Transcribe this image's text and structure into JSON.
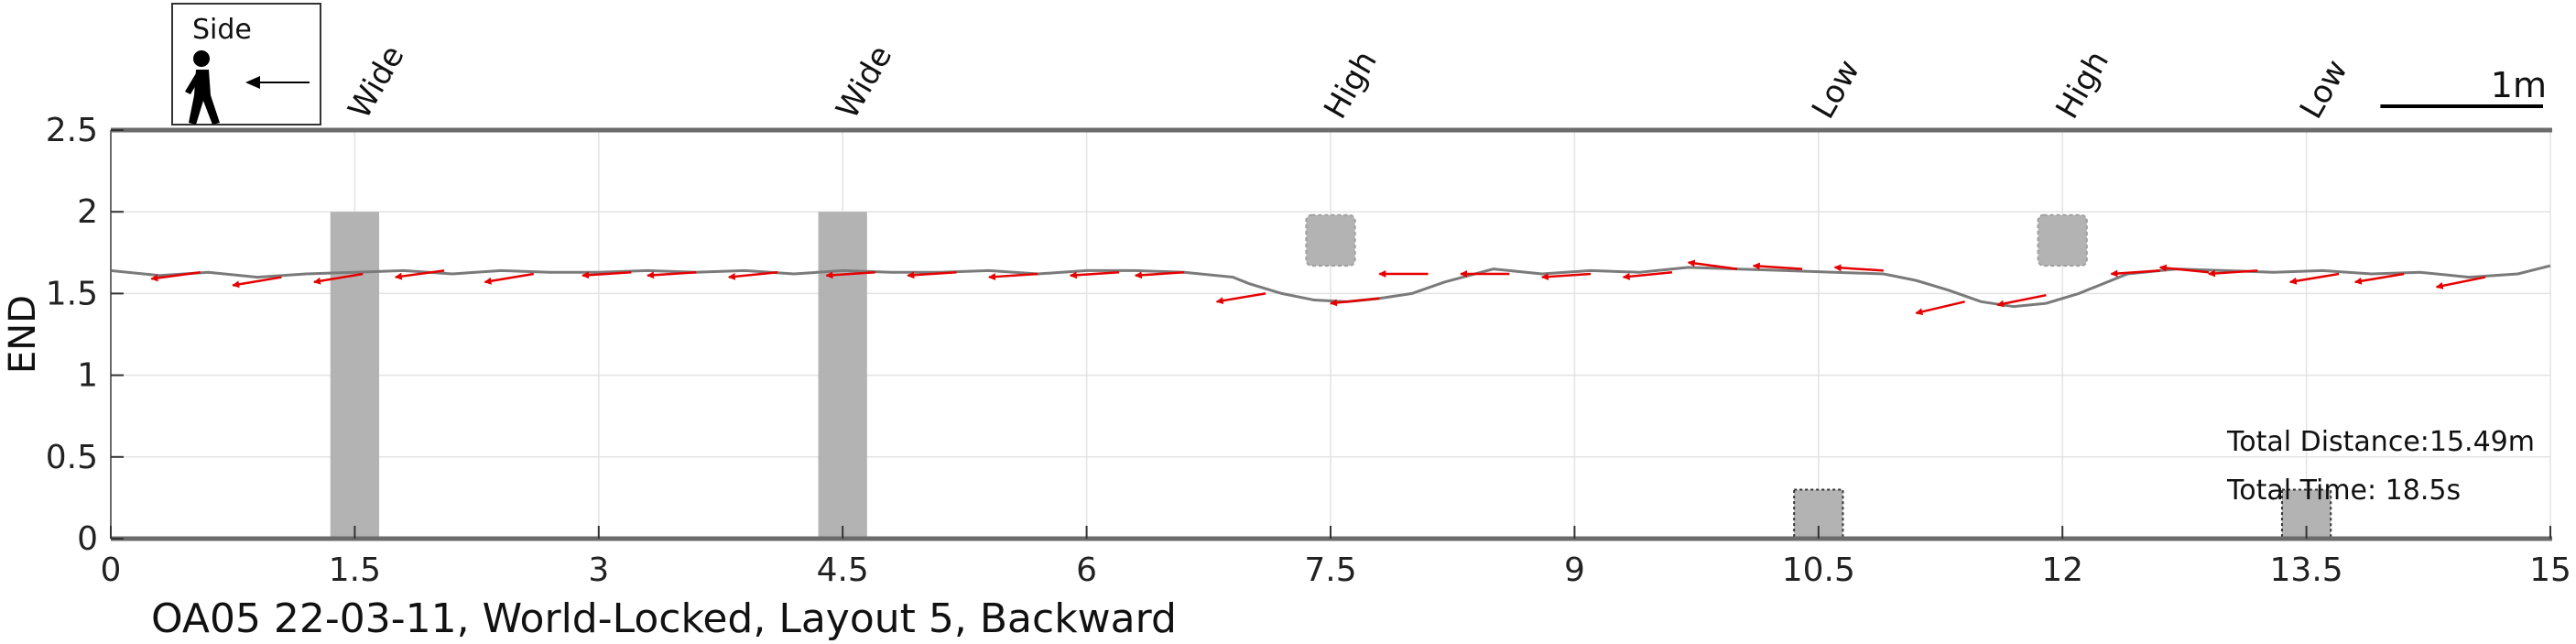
{
  "chart_data": {
    "type": "line",
    "title": "OA05 22-03-11, World-Locked, Layout 5, Backward",
    "xlabel": "",
    "ylabel": "END",
    "xlim": [
      0,
      15
    ],
    "ylim": [
      0,
      2.5
    ],
    "xticks": [
      0,
      1.5,
      3,
      4.5,
      6,
      7.5,
      9,
      10.5,
      12,
      13.5,
      15
    ],
    "xtick_labels": [
      "0",
      "1.5",
      "3",
      "4.5",
      "6",
      "7.5",
      "9",
      "10.5",
      "12",
      "13.5",
      "15"
    ],
    "yticks": [
      0,
      0.5,
      1,
      1.5,
      2,
      2.5
    ],
    "ytick_labels": [
      "0",
      "0.5",
      "1",
      "1.5",
      "2",
      "2.5"
    ],
    "grid": true,
    "legend": {
      "text": "Side",
      "icon": "walking-person-icon",
      "arrow": "left-arrow-icon"
    },
    "scale_bar": {
      "label": "1m",
      "length": 1
    },
    "annotations": [
      "Total Distance:15.49m",
      "Total Time: 18.5s"
    ],
    "colors": {
      "path": "#7a7a7a",
      "arrows": "#e60000",
      "obstacle": "#b3b3b3",
      "axis": "#6b6b6b"
    },
    "obstacles": [
      {
        "label": "Wide",
        "type": "wide",
        "x": [
          1.35,
          1.65
        ],
        "y": [
          0,
          2.0
        ]
      },
      {
        "label": "Wide",
        "type": "wide",
        "x": [
          4.35,
          4.65
        ],
        "y": [
          0,
          2.0
        ]
      },
      {
        "label": "High",
        "type": "high",
        "x": [
          7.35,
          7.65
        ],
        "y": [
          1.67,
          1.98
        ]
      },
      {
        "label": "Low",
        "type": "low",
        "x": [
          10.35,
          10.65
        ],
        "y": [
          0,
          0.3
        ]
      },
      {
        "label": "High",
        "type": "high",
        "x": [
          11.85,
          12.15
        ],
        "y": [
          1.67,
          1.98
        ]
      },
      {
        "label": "Low",
        "type": "low",
        "x": [
          13.35,
          13.65
        ],
        "y": [
          0,
          0.3
        ]
      }
    ],
    "series": [
      {
        "type": "line",
        "x": [
          0,
          0.3,
          0.6,
          0.9,
          1.2,
          1.5,
          1.8,
          2.1,
          2.4,
          2.7,
          3.0,
          3.3,
          3.6,
          3.9,
          4.2,
          4.5,
          4.8,
          5.1,
          5.4,
          5.7,
          6.0,
          6.3,
          6.6,
          6.9,
          7.0,
          7.2,
          7.4,
          7.6,
          7.8,
          8.0,
          8.2,
          8.5,
          8.8,
          9.1,
          9.4,
          9.7,
          10.0,
          10.3,
          10.6,
          10.9,
          11.1,
          11.3,
          11.5,
          11.7,
          11.9,
          12.1,
          12.4,
          12.7,
          13.0,
          13.3,
          13.6,
          13.9,
          14.2,
          14.5,
          14.8,
          15.0
        ],
        "y": [
          1.64,
          1.61,
          1.63,
          1.6,
          1.62,
          1.63,
          1.64,
          1.62,
          1.64,
          1.63,
          1.63,
          1.64,
          1.63,
          1.64,
          1.62,
          1.64,
          1.63,
          1.63,
          1.64,
          1.62,
          1.64,
          1.64,
          1.63,
          1.6,
          1.56,
          1.5,
          1.46,
          1.45,
          1.47,
          1.5,
          1.57,
          1.65,
          1.62,
          1.64,
          1.63,
          1.66,
          1.65,
          1.64,
          1.63,
          1.62,
          1.58,
          1.52,
          1.45,
          1.42,
          1.44,
          1.5,
          1.62,
          1.65,
          1.64,
          1.63,
          1.64,
          1.62,
          1.63,
          1.6,
          1.62,
          1.67
        ]
      },
      {
        "type": "arrows",
        "points": [
          {
            "x": 0.55,
            "y": 1.63,
            "dx": -0.3,
            "dy": -0.04
          },
          {
            "x": 1.05,
            "y": 1.6,
            "dx": -0.3,
            "dy": -0.05
          },
          {
            "x": 1.55,
            "y": 1.62,
            "dx": -0.3,
            "dy": -0.05
          },
          {
            "x": 2.05,
            "y": 1.64,
            "dx": -0.3,
            "dy": -0.04
          },
          {
            "x": 2.6,
            "y": 1.62,
            "dx": -0.3,
            "dy": -0.05
          },
          {
            "x": 3.2,
            "y": 1.63,
            "dx": -0.3,
            "dy": -0.02
          },
          {
            "x": 3.6,
            "y": 1.63,
            "dx": -0.3,
            "dy": -0.02
          },
          {
            "x": 4.1,
            "y": 1.63,
            "dx": -0.3,
            "dy": -0.03
          },
          {
            "x": 4.7,
            "y": 1.63,
            "dx": -0.3,
            "dy": -0.02
          },
          {
            "x": 5.2,
            "y": 1.63,
            "dx": -0.3,
            "dy": -0.02
          },
          {
            "x": 5.7,
            "y": 1.62,
            "dx": -0.3,
            "dy": -0.02
          },
          {
            "x": 6.2,
            "y": 1.63,
            "dx": -0.3,
            "dy": -0.02
          },
          {
            "x": 6.6,
            "y": 1.63,
            "dx": -0.3,
            "dy": -0.02
          },
          {
            "x": 7.1,
            "y": 1.5,
            "dx": -0.3,
            "dy": -0.05
          },
          {
            "x": 7.8,
            "y": 1.47,
            "dx": -0.3,
            "dy": -0.03
          },
          {
            "x": 8.1,
            "y": 1.62,
            "dx": -0.3,
            "dy": 0.0
          },
          {
            "x": 8.6,
            "y": 1.62,
            "dx": -0.3,
            "dy": 0.0
          },
          {
            "x": 9.1,
            "y": 1.62,
            "dx": -0.3,
            "dy": -0.02
          },
          {
            "x": 9.6,
            "y": 1.63,
            "dx": -0.3,
            "dy": -0.03
          },
          {
            "x": 10.0,
            "y": 1.65,
            "dx": -0.3,
            "dy": 0.04
          },
          {
            "x": 10.4,
            "y": 1.65,
            "dx": -0.3,
            "dy": 0.02
          },
          {
            "x": 10.9,
            "y": 1.64,
            "dx": -0.3,
            "dy": 0.02
          },
          {
            "x": 11.4,
            "y": 1.45,
            "dx": -0.3,
            "dy": -0.07
          },
          {
            "x": 11.9,
            "y": 1.49,
            "dx": -0.3,
            "dy": -0.06
          },
          {
            "x": 12.6,
            "y": 1.64,
            "dx": -0.3,
            "dy": -0.02
          },
          {
            "x": 12.9,
            "y": 1.63,
            "dx": -0.3,
            "dy": 0.03
          },
          {
            "x": 13.2,
            "y": 1.64,
            "dx": -0.3,
            "dy": -0.02
          },
          {
            "x": 13.7,
            "y": 1.62,
            "dx": -0.3,
            "dy": -0.05
          },
          {
            "x": 14.1,
            "y": 1.62,
            "dx": -0.3,
            "dy": -0.05
          },
          {
            "x": 14.6,
            "y": 1.6,
            "dx": -0.3,
            "dy": -0.06
          }
        ]
      }
    ]
  }
}
